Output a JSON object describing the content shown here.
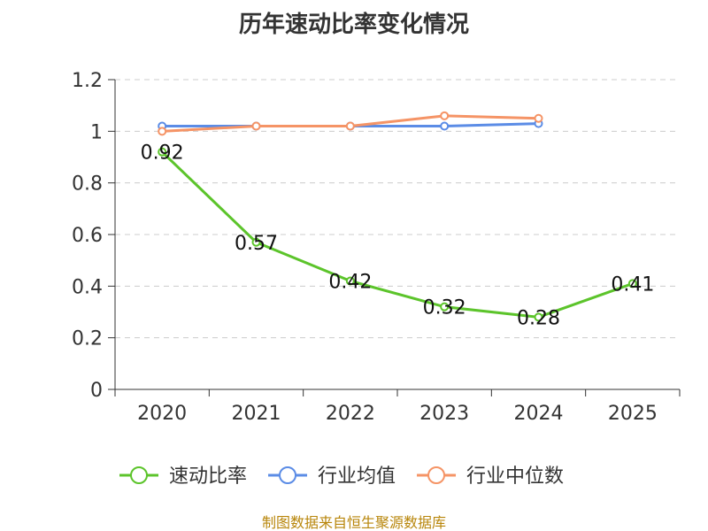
{
  "chart_data": {
    "type": "line",
    "title": "历年速动比率变化情况",
    "categories": [
      "2020",
      "2021",
      "2022",
      "2023",
      "2024",
      "2025"
    ],
    "ylim": [
      0,
      1.2
    ],
    "yticks": [
      "0",
      "0.2",
      "0.4",
      "0.6",
      "0.8",
      "1",
      "1.2"
    ],
    "grid": true,
    "legend_position": "bottom",
    "series": [
      {
        "name": "速动比率",
        "color": "#5cc42b",
        "values": [
          0.92,
          0.57,
          0.42,
          0.32,
          0.28,
          0.41
        ],
        "data_labels": [
          "0.92",
          "0.57",
          "0.42",
          "0.32",
          "0.28",
          "0.41"
        ]
      },
      {
        "name": "行业均值",
        "color": "#5b8ce6",
        "values": [
          1.02,
          1.02,
          1.02,
          1.02,
          1.03,
          null
        ]
      },
      {
        "name": "行业中位数",
        "color": "#f59466",
        "values": [
          1.0,
          1.02,
          1.02,
          1.06,
          1.05,
          null
        ]
      }
    ],
    "source": "制图数据来自恒生聚源数据库"
  }
}
